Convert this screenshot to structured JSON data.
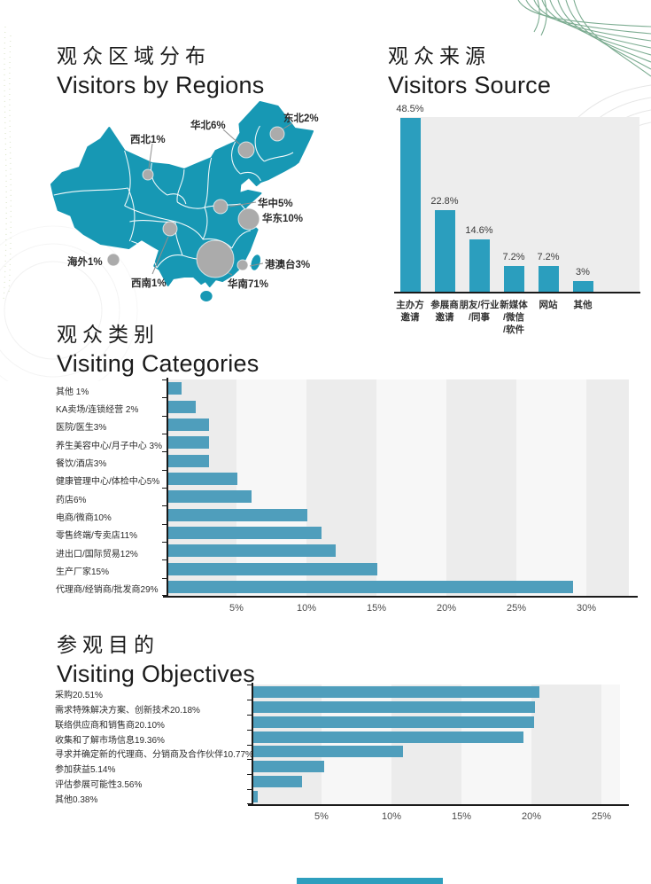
{
  "colors": {
    "map_fill": "#1798B4",
    "bubble_gray": "#ABABAB",
    "bar_teal_vertical": "#2B9EBE",
    "bar_teal_horizontal": "#4F9EBC",
    "band_dark": "#ECECEC",
    "band_light": "#F7F7F7",
    "decor_green": "#7CAC91",
    "footer_teal": "#2E9FBE"
  },
  "sections": {
    "regions": {
      "title_zh": "观众区域分布",
      "title_en": "Visitors by Regions"
    },
    "source": {
      "title_zh": "观众来源",
      "title_en": "Visitors Source"
    },
    "categories": {
      "title_zh": "观众类别",
      "title_en": "Visiting Categories"
    },
    "objectives": {
      "title_zh": "参观目的",
      "title_en": "Visiting Objectives"
    }
  },
  "chart_data": [
    {
      "id": "regions",
      "type": "bubble-map",
      "title": "观众区域分布 Visitors by Regions",
      "points": [
        {
          "name": "东北",
          "label": "东北2%",
          "value": 2
        },
        {
          "name": "华北",
          "label": "华北6%",
          "value": 6
        },
        {
          "name": "西北",
          "label": "西北1%",
          "value": 1
        },
        {
          "name": "华中",
          "label": "华中5%",
          "value": 5
        },
        {
          "name": "华东",
          "label": "华东10%",
          "value": 10
        },
        {
          "name": "海外",
          "label": "海外1%",
          "value": 1
        },
        {
          "name": "西南",
          "label": "西南1%",
          "value": 1
        },
        {
          "name": "华南",
          "label": "华南71%",
          "value": 71
        },
        {
          "name": "港澳台",
          "label": "港澳台3%",
          "value": 3
        }
      ]
    },
    {
      "id": "source",
      "type": "bar",
      "title": "观众来源 Visitors Source",
      "categories": [
        "主办方邀请",
        "参展商邀请",
        "朋友/行业/同事",
        "新媒体/微信/软件",
        "网站",
        "其他"
      ],
      "category_lines": [
        [
          "主办方",
          "邀请"
        ],
        [
          "参展商",
          "邀请"
        ],
        [
          "朋友/行业",
          "/同事"
        ],
        [
          "新媒体",
          "/微信",
          "/软件"
        ],
        [
          "网站"
        ],
        [
          "其他"
        ]
      ],
      "values": [
        48.5,
        22.8,
        14.6,
        7.2,
        7.2,
        3
      ],
      "value_labels": [
        "48.5%",
        "22.8%",
        "14.6%",
        "7.2%",
        "7.2%",
        "3%"
      ],
      "ylim": [
        0,
        50
      ],
      "grid": false,
      "legend": false
    },
    {
      "id": "categories",
      "type": "bar-horizontal",
      "title": "观众类别 Visiting Categories",
      "categories": [
        "其他 1%",
        "KA卖场/连锁经营 2%",
        "医院/医生3%",
        "养生美容中心/月子中心 3%",
        "餐饮/酒店3%",
        "健康管理中心/体检中心5%",
        "药店6%",
        "电商/微商10%",
        "零售终端/专卖店11%",
        "进出口/国际贸易12%",
        "生产厂家15%",
        "代理商/经销商/批发商29%"
      ],
      "values": [
        1,
        2,
        3,
        3,
        3,
        5,
        6,
        10,
        11,
        12,
        15,
        29
      ],
      "xticks": [
        "5%",
        "10%",
        "15%",
        "20%",
        "25%",
        "30%"
      ],
      "xtick_values": [
        5,
        10,
        15,
        20,
        25,
        30
      ],
      "xlim": [
        0,
        30
      ],
      "grid": "vertical-bands",
      "legend": false
    },
    {
      "id": "objectives",
      "type": "bar-horizontal",
      "title": "参观目的 Visiting Objectives",
      "categories": [
        "采购20.51%",
        "需求特殊解决方案、创新技术20.18%",
        "联络供应商和销售商20.10%",
        "收集和了解市场信息19.36%",
        "寻求并确定新的代理商、分销商及合作伙伴10.77%",
        "参加获益5.14%",
        "评估参展可能性3.56%",
        "其他0.38%"
      ],
      "values": [
        20.51,
        20.18,
        20.1,
        19.36,
        10.77,
        5.14,
        3.56,
        0.38
      ],
      "xticks": [
        "5%",
        "10%",
        "15%",
        "20%",
        "25%"
      ],
      "xtick_values": [
        5,
        10,
        15,
        20,
        25
      ],
      "xlim": [
        0,
        25
      ],
      "grid": "vertical-bands",
      "legend": false
    }
  ]
}
